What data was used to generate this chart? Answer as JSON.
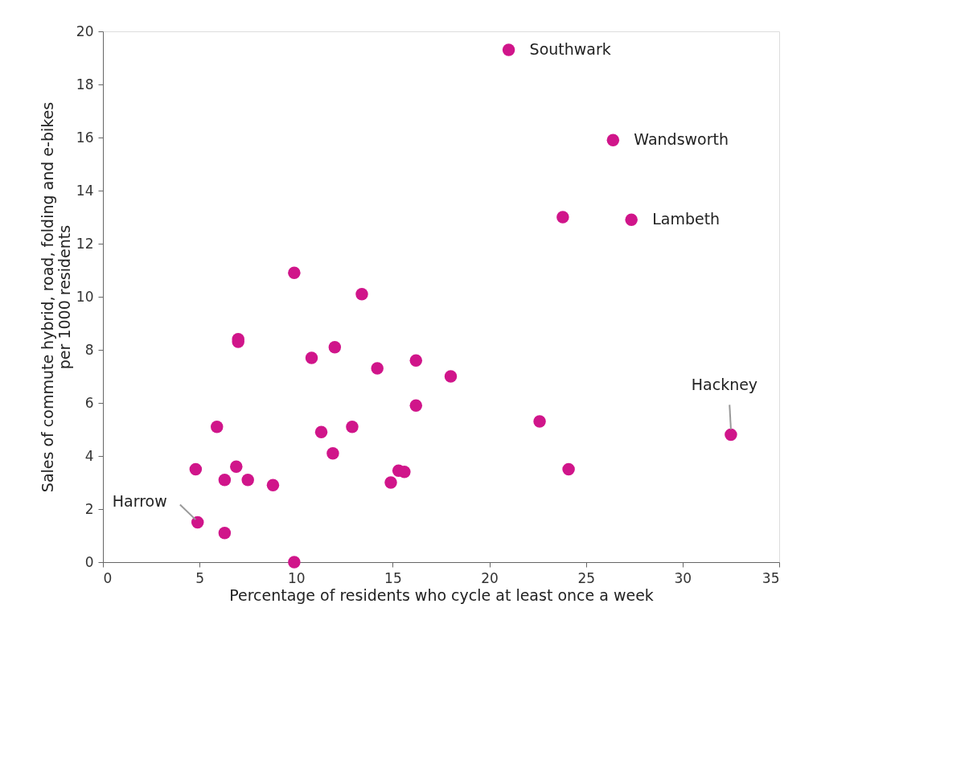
{
  "chart_data": {
    "type": "scatter",
    "xlabel": "Percentage of residents who cycle at least once a week",
    "ylabel": "Sales of commute hybrid, road, folding and e-bikes per 1000 residents",
    "x": [
      21.0,
      26.4,
      23.8,
      27.35,
      9.9,
      13.4,
      7.0,
      7.0,
      10.8,
      12.0,
      14.2,
      16.2,
      18.0,
      16.2,
      5.9,
      22.6,
      32.5,
      11.3,
      12.9,
      11.9,
      4.8,
      6.3,
      6.9,
      7.5,
      8.8,
      4.9,
      6.3,
      9.9,
      15.3,
      15.6,
      14.9,
      24.1
    ],
    "series": [
      {
        "color": "#d0158a",
        "values": [
          19.3,
          15.9,
          13.0,
          12.9,
          10.9,
          10.1,
          8.4,
          8.3,
          7.7,
          8.1,
          7.3,
          7.6,
          7.0,
          5.9,
          5.1,
          5.3,
          4.8,
          4.9,
          5.1,
          4.1,
          3.5,
          3.1,
          3.6,
          3.1,
          2.9,
          1.5,
          1.1,
          0.0,
          3.45,
          3.4,
          3.0,
          3.5
        ]
      }
    ],
    "xlim": [
      0,
      35
    ],
    "xticks": [
      0,
      5,
      10,
      15,
      20,
      25,
      30,
      35
    ],
    "ylim": [
      0,
      20
    ],
    "yticks": [
      0,
      2,
      4,
      6,
      8,
      10,
      12,
      14,
      16,
      18,
      20
    ],
    "grid": false,
    "marker": "circle",
    "annotations": [
      {
        "text": "Southwark",
        "x": 21.0,
        "y": 19.3
      },
      {
        "text": "Wandsworth",
        "x": 26.4,
        "y": 15.9
      },
      {
        "text": "Lambeth",
        "x": 27.35,
        "y": 12.9
      },
      {
        "text": "Hackney",
        "x": 32.5,
        "y": 4.8
      },
      {
        "text": "Harrow",
        "x": 4.9,
        "y": 1.5
      }
    ]
  }
}
